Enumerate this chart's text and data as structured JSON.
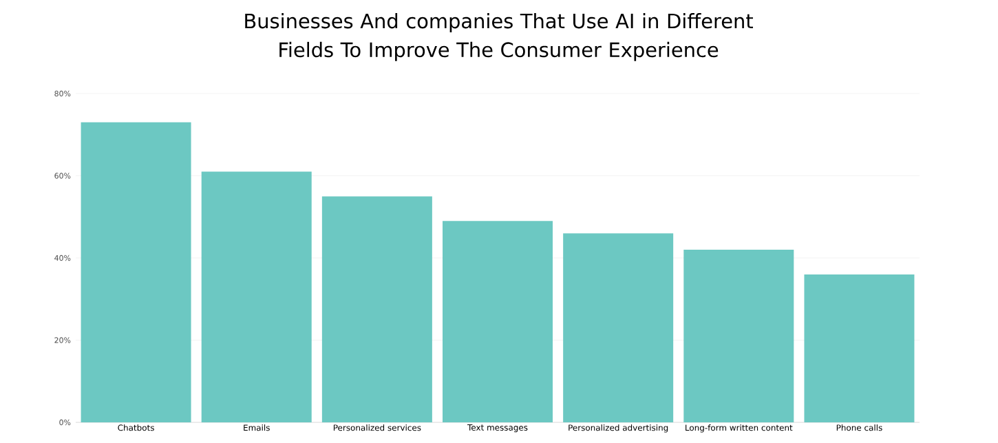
{
  "chart_data": {
    "type": "bar",
    "title": "Businesses And companies That Use AI in Different Fields To Improve The Consumer Experience",
    "categories": [
      "Chatbots",
      "Emails",
      "Personalized services",
      "Text messages",
      "Personalized advertising",
      "Long-form written content",
      "Phone calls"
    ],
    "values": [
      73,
      61,
      55,
      49,
      46,
      42,
      36
    ],
    "color": "#6cc8c2",
    "ylim": [
      0,
      80
    ],
    "yticks": [
      {
        "value": 0,
        "label": "0%"
      },
      {
        "value": 20,
        "label": "20%"
      },
      {
        "value": 40,
        "label": "40%"
      },
      {
        "value": 60,
        "label": "60%"
      },
      {
        "value": 80,
        "label": "80%"
      }
    ],
    "grid": "y"
  }
}
